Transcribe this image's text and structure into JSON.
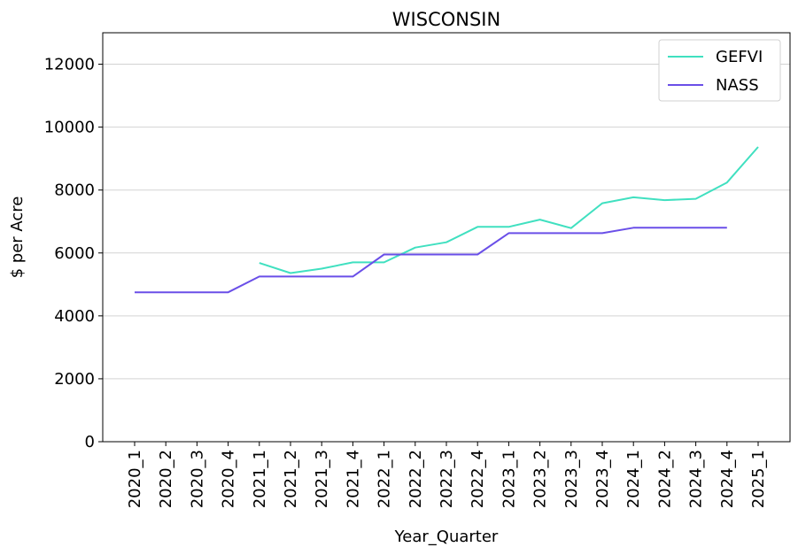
{
  "chart_data": {
    "type": "line",
    "title": "WISCONSIN",
    "xlabel": "Year_Quarter",
    "ylabel": "$ per Acre",
    "ylim": [
      0,
      13000
    ],
    "yticks": [
      0,
      2000,
      4000,
      6000,
      8000,
      10000,
      12000
    ],
    "grid": "horizontal",
    "legend_position": "top-right",
    "categories": [
      "2020_1",
      "2020_2",
      "2020_3",
      "2020_4",
      "2021_1",
      "2021_2",
      "2021_3",
      "2021_4",
      "2022_1",
      "2022_2",
      "2022_3",
      "2022_4",
      "2023_1",
      "2023_2",
      "2023_3",
      "2023_4",
      "2024_1",
      "2024_2",
      "2024_3",
      "2024_4",
      "2025_1"
    ],
    "series": [
      {
        "name": "GEFVI",
        "color": "#40e0c0",
        "values": [
          null,
          null,
          null,
          null,
          5680,
          5360,
          5500,
          5700,
          5700,
          6170,
          6340,
          6830,
          6830,
          7060,
          6790,
          7580,
          7770,
          7680,
          7720,
          8240,
          9370
        ]
      },
      {
        "name": "NASS",
        "color": "#6a4fe8",
        "values": [
          4750,
          4750,
          4750,
          4750,
          5250,
          5250,
          5250,
          5250,
          5950,
          5950,
          5950,
          5950,
          6630,
          6630,
          6630,
          6630,
          6800,
          6800,
          6800,
          6800,
          null
        ]
      }
    ]
  }
}
